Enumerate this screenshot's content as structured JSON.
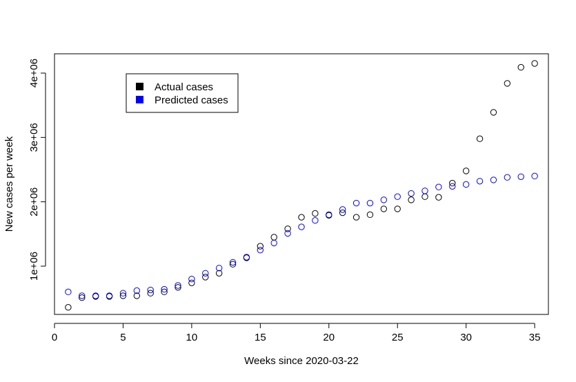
{
  "chart_data": {
    "type": "scatter",
    "title": "",
    "xlabel": "Weeks since 2020-03-22",
    "ylabel": "New cases per week",
    "xlim": [
      0,
      36
    ],
    "ylim": [
      250000,
      4300000
    ],
    "xticks": [
      0,
      5,
      10,
      15,
      20,
      25,
      30,
      35
    ],
    "xtick_labels": [
      "0",
      "5",
      "10",
      "15",
      "20",
      "25",
      "30",
      "35"
    ],
    "yticks": [
      1000000,
      2000000,
      3000000,
      4000000
    ],
    "ytick_labels": [
      "1e+06",
      "2e+06",
      "3e+06",
      "4e+06"
    ],
    "grid": false,
    "legend_position": "top-left",
    "series": [
      {
        "name": "Actual cases",
        "color": "#000000",
        "marker": "open-circle",
        "x": [
          1,
          2,
          3,
          4,
          5,
          6,
          7,
          8,
          9,
          10,
          11,
          12,
          13,
          14,
          15,
          16,
          17,
          18,
          19,
          20,
          21,
          22,
          23,
          24,
          25,
          26,
          27,
          28,
          29,
          30,
          31,
          32,
          33,
          34,
          35
        ],
        "y": [
          360000,
          510000,
          530000,
          530000,
          540000,
          540000,
          580000,
          600000,
          670000,
          740000,
          830000,
          890000,
          1030000,
          1130000,
          1310000,
          1450000,
          1580000,
          1760000,
          1820000,
          1790000,
          1830000,
          1760000,
          1800000,
          1890000,
          1890000,
          2030000,
          2080000,
          2070000,
          2290000,
          2480000,
          2980000,
          3390000,
          3840000,
          4090000,
          4150000
        ]
      },
      {
        "name": "Predicted cases",
        "color": "#0000ff",
        "marker": "open-circle",
        "x": [
          1,
          2,
          3,
          4,
          5,
          6,
          7,
          8,
          9,
          10,
          11,
          12,
          13,
          14,
          15,
          16,
          17,
          18,
          19,
          20,
          21,
          22,
          23,
          24,
          25,
          26,
          27,
          28,
          29,
          30,
          31,
          32,
          33,
          34,
          35
        ],
        "y": [
          600000,
          540000,
          540000,
          540000,
          580000,
          620000,
          630000,
          640000,
          700000,
          800000,
          890000,
          970000,
          1060000,
          1140000,
          1250000,
          1360000,
          1510000,
          1610000,
          1710000,
          1800000,
          1880000,
          1980000,
          1980000,
          2030000,
          2080000,
          2130000,
          2170000,
          2230000,
          2240000,
          2270000,
          2320000,
          2340000,
          2380000,
          2390000,
          2400000
        ]
      }
    ]
  }
}
